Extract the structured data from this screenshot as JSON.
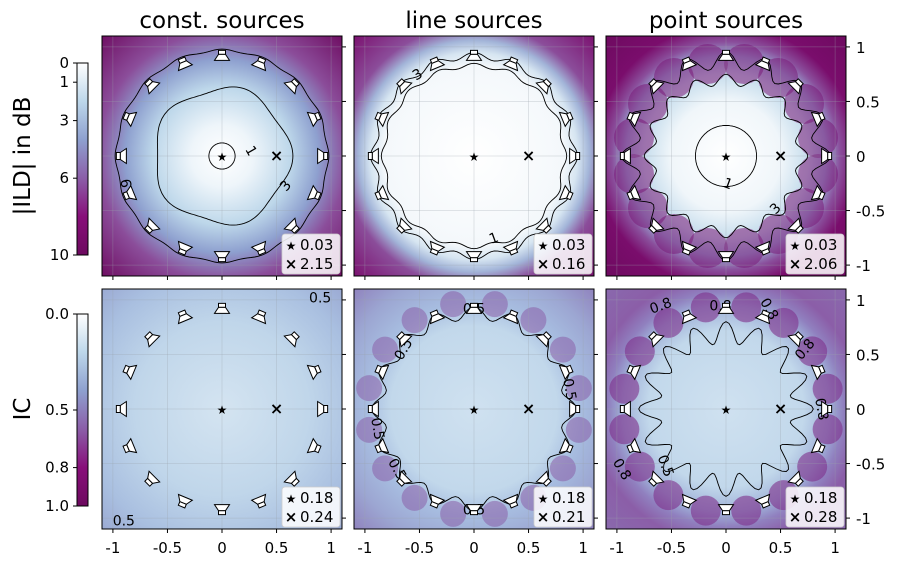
{
  "chart_data": {
    "type": "heatmap",
    "columns": [
      "const. sources",
      "line sources",
      "point sources"
    ],
    "rows": [
      {
        "label": "|ILD| in dB",
        "colorbar_ticks": [
          "0",
          "1",
          "3",
          "6",
          "10"
        ],
        "colorbar_values": [
          0,
          1,
          3,
          6,
          10
        ],
        "colorbar_range": [
          0,
          10
        ],
        "panels": [
          {
            "star": "0.03",
            "cross": "2.15",
            "contours": [
              "1",
              "3",
              "6"
            ],
            "contour_values": [
              1,
              3,
              6
            ]
          },
          {
            "star": "0.03",
            "cross": "0.16",
            "contours": [
              "1",
              "3"
            ],
            "contour_values": [
              1,
              3
            ]
          },
          {
            "star": "0.03",
            "cross": "2.06",
            "contours": [
              "1",
              "3",
              "6"
            ],
            "contour_values": [
              1,
              3,
              6
            ]
          }
        ]
      },
      {
        "label": "IC",
        "colorbar_ticks": [
          "0.0",
          "0.5",
          "0.8",
          "1.0"
        ],
        "colorbar_values": [
          0.0,
          0.5,
          0.8,
          1.0
        ],
        "colorbar_range": [
          0,
          1
        ],
        "panels": [
          {
            "star": "0.18",
            "cross": "0.24",
            "contours": [
              "0.5",
              "0.5"
            ],
            "contour_values": [
              0.5
            ]
          },
          {
            "star": "0.18",
            "cross": "0.21",
            "contours": [
              "0.5",
              "0.5",
              "0.5",
              "0.5",
              "0.5",
              "0.5"
            ],
            "contour_values": [
              0.5
            ]
          },
          {
            "star": "0.18",
            "cross": "0.28",
            "contours": [
              "0.8",
              "0.8",
              "0.8",
              "0.8",
              "0.8",
              "0.8",
              "0.5"
            ],
            "contour_values": [
              0.5,
              0.8
            ]
          }
        ]
      }
    ],
    "x_ticks": [
      "-1",
      "-0.5",
      "0",
      "0.5",
      "1"
    ],
    "x_tick_values": [
      -1,
      -0.5,
      0,
      0.5,
      1
    ],
    "y_ticks": [
      "1",
      "0.5",
      "0",
      "-0.5",
      "-1"
    ],
    "y_tick_values": [
      1,
      0.5,
      0,
      -0.5,
      -1
    ],
    "xlim": [
      -1.1,
      1.1
    ],
    "ylim": [
      -1.1,
      1.1
    ],
    "star_position": [
      0,
      0
    ],
    "cross_position": [
      0.5,
      0
    ],
    "num_loudspeakers": 16,
    "array_radius": 0.95,
    "colormap": [
      "#ffffff",
      "#bdd7ea",
      "#8ea0cf",
      "#8b5ea8",
      "#880f7a",
      "#6d0a5f"
    ],
    "grid": true,
    "legend_placement": "bottom-right"
  }
}
